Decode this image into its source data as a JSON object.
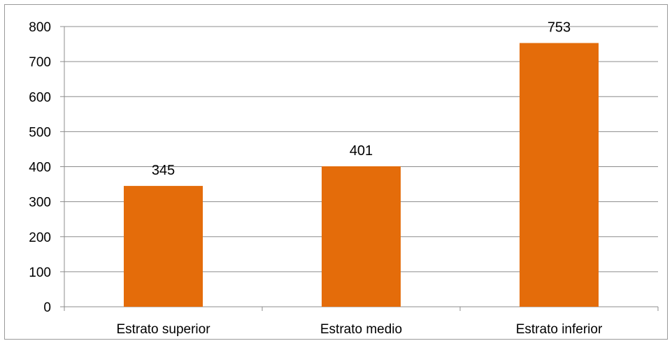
{
  "chart_data": {
    "type": "bar",
    "title": "",
    "xlabel": "",
    "ylabel": "",
    "categories": [
      "Estrato superior",
      "Estrato medio",
      "Estrato inferior"
    ],
    "values": [
      345,
      401,
      753
    ],
    "data_labels": [
      "345",
      "401",
      "753"
    ],
    "ylim": [
      0,
      800
    ],
    "yticks": [
      "0",
      "100",
      "200",
      "300",
      "400",
      "500",
      "600",
      "700",
      "800"
    ],
    "grid": true,
    "legend": "none",
    "bar_color": "#E46C0A",
    "grid_color": "#8c8c8c"
  }
}
